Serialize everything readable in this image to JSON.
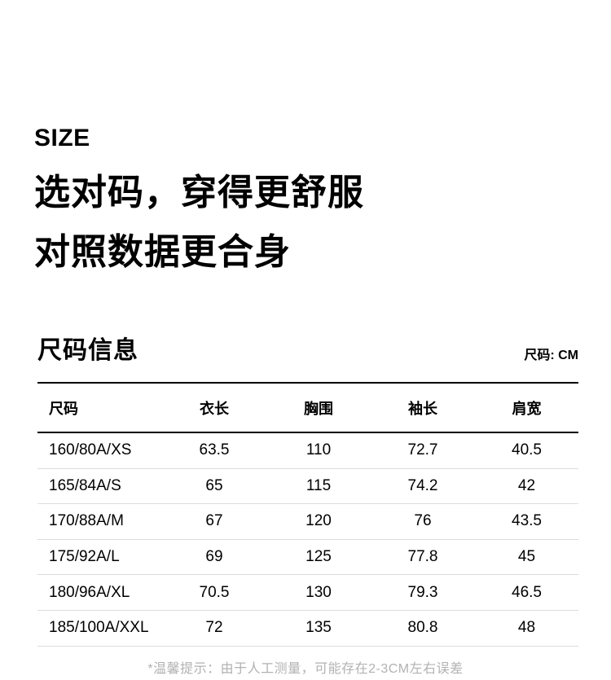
{
  "intro": {
    "eyebrow": "SIZE",
    "headline_line1": "选对码，穿得更舒服",
    "headline_line2": "对照数据更合身"
  },
  "size_section": {
    "title": "尺码信息",
    "unit_label": "尺码: CM",
    "table": {
      "columns": [
        "尺码",
        "衣长",
        "胸围",
        "袖长",
        "肩宽"
      ],
      "rows": [
        [
          "160/80A/XS",
          "63.5",
          "110",
          "72.7",
          "40.5"
        ],
        [
          "165/84A/S",
          "65",
          "115",
          "74.2",
          "42"
        ],
        [
          "170/88A/M",
          "67",
          "120",
          "76",
          "43.5"
        ],
        [
          "175/92A/L",
          "69",
          "125",
          "77.8",
          "45"
        ],
        [
          "180/96A/XL",
          "70.5",
          "130",
          "79.3",
          "46.5"
        ],
        [
          "185/100A/XXL",
          "72",
          "135",
          "80.8",
          "48"
        ]
      ]
    },
    "footnote": "*温馨提示：由于人工测量，可能存在2-3CM左右误差"
  },
  "colors": {
    "background": "#ffffff",
    "text": "#000000",
    "table_heavy_rule": "#000000",
    "table_light_rule": "#dcdcdc",
    "footnote_text": "#b2b2b2"
  }
}
